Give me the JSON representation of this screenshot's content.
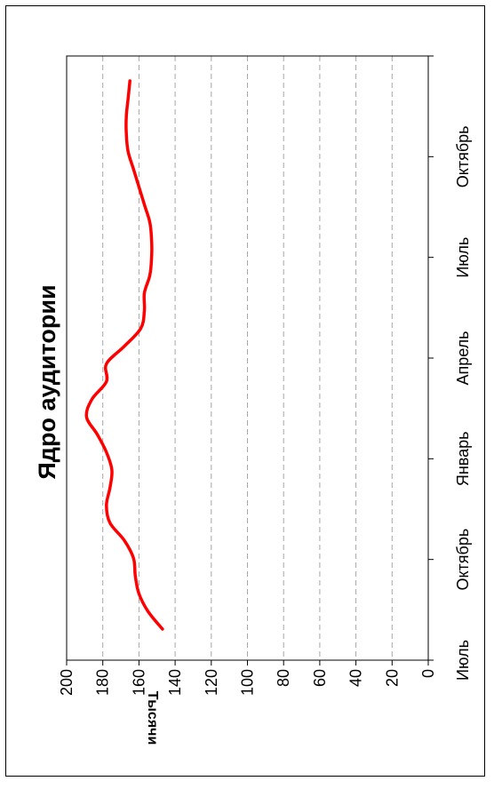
{
  "chart_data": {
    "type": "line",
    "title": "Ядро аудитории",
    "xlabel": "",
    "ylabel": "Тысячи",
    "ylim": [
      0,
      200
    ],
    "yticks": [
      "0",
      "20",
      "40",
      "60",
      "80",
      "100",
      "120",
      "140",
      "160",
      "180",
      "200"
    ],
    "xticks": [
      "Июль",
      "Октябрь",
      "Январь",
      "Апрель",
      "Июль",
      "Октябрь"
    ],
    "grid": "horizontal-dashed",
    "orientation": "rotated-90-ccw",
    "series": [
      {
        "color": "#ff0000",
        "x": [
          0.0,
          0.5,
          1.0,
          1.5,
          2.0,
          2.5,
          3.0,
          3.5,
          4.0,
          4.5,
          5.0,
          5.5,
          6.0,
          6.5,
          7.0,
          7.5,
          8.0,
          8.5,
          9.0,
          9.5,
          10.0,
          10.5,
          11.0,
          11.5,
          12.0,
          12.5,
          13.0,
          13.5,
          14.0,
          14.5,
          15.0,
          15.5
        ],
        "y": [
          147,
          155,
          160,
          162,
          163,
          168,
          176,
          178,
          176,
          175,
          178,
          183,
          189,
          186,
          178,
          178,
          168,
          159,
          157,
          157,
          154,
          153,
          153,
          154,
          157,
          160,
          163,
          166,
          167,
          167,
          166,
          165
        ]
      }
    ]
  }
}
